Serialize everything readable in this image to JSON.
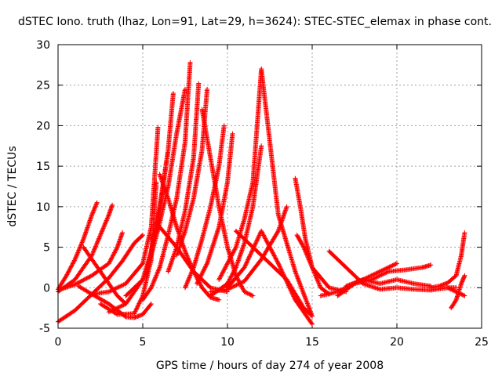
{
  "chart_data": {
    "type": "scatter",
    "title": "dSTEC Iono. truth (lhaz, Lon=91, Lat=29, h=3624): STEC-STEC_elemax in phase cont.",
    "xlabel": "GPS time / hours of day 274 of year 2008",
    "ylabel": "dSTEC  / TECUs",
    "xlim": [
      0,
      25
    ],
    "ylim": [
      -5,
      30
    ],
    "xticks": [
      0,
      5,
      10,
      15,
      20,
      25
    ],
    "yticks": [
      -5,
      0,
      5,
      10,
      15,
      20,
      25,
      30
    ],
    "grid": true,
    "marker": "plus",
    "color": "#ff0000",
    "series": [
      {
        "x": [
          0.0,
          0.5,
          1.0,
          1.5,
          2.0,
          2.3
        ],
        "y": [
          -0.2,
          1.5,
          3.5,
          6.0,
          9.0,
          10.5
        ]
      },
      {
        "x": [
          0.0,
          1.0,
          2.0,
          3.0,
          3.8,
          4.5,
          5.0
        ],
        "y": [
          -4.2,
          -2.8,
          -0.8,
          1.2,
          3.3,
          5.5,
          6.5
        ]
      },
      {
        "x": [
          0.0,
          1.0,
          2.0,
          2.5,
          3.0,
          3.2
        ],
        "y": [
          -0.5,
          1.0,
          4.0,
          6.5,
          9.0,
          10.2
        ]
      },
      {
        "x": [
          1.5,
          2.0,
          2.5,
          3.0,
          3.5,
          4.0
        ],
        "y": [
          5.0,
          3.5,
          2.0,
          0.5,
          -1.0,
          -2.0
        ]
      },
      {
        "x": [
          0.3,
          1.0,
          2.0,
          3.0,
          3.5,
          3.8
        ],
        "y": [
          -0.1,
          0.4,
          1.5,
          3.0,
          5.0,
          6.8
        ]
      },
      {
        "x": [
          1.2,
          2.0,
          3.0,
          3.5,
          4.0,
          4.5,
          5.0,
          5.5
        ],
        "y": [
          0.2,
          -0.8,
          -2.0,
          -2.8,
          -3.6,
          -3.7,
          -3.3,
          -2.0
        ]
      },
      {
        "x": [
          2.5,
          3.5,
          4.5,
          5.0,
          5.5,
          5.8
        ],
        "y": [
          -2.0,
          -3.3,
          -3.2,
          -1.0,
          3.5,
          13.0
        ]
      },
      {
        "x": [
          2.0,
          3.0,
          4.0,
          5.0,
          5.5,
          5.9
        ],
        "y": [
          -0.8,
          -0.5,
          0.5,
          3.0,
          7.5,
          19.8
        ]
      },
      {
        "x": [
          3.0,
          4.0,
          5.0,
          5.5,
          6.0,
          6.5
        ],
        "y": [
          -3.0,
          -2.0,
          1.0,
          4.5,
          9.5,
          17.0
        ]
      },
      {
        "x": [
          4.0,
          5.0,
          5.5,
          6.0,
          6.5,
          7.0,
          7.5
        ],
        "y": [
          -1.0,
          1.0,
          4.0,
          8.0,
          12.5,
          19.0,
          24.5
        ]
      },
      {
        "x": [
          5.0,
          5.5,
          6.0,
          6.5,
          7.0,
          7.5,
          7.8
        ],
        "y": [
          -1.5,
          0.0,
          2.5,
          6.5,
          11.0,
          18.0,
          27.8
        ]
      },
      {
        "x": [
          5.2,
          5.5,
          6.0,
          6.5,
          6.8
        ],
        "y": [
          1.5,
          4.5,
          10.0,
          17.0,
          24.0
        ]
      },
      {
        "x": [
          6.0,
          6.5,
          7.0,
          7.5,
          8.0,
          8.5,
          9.0,
          9.5
        ],
        "y": [
          14.0,
          11.0,
          7.5,
          4.5,
          2.0,
          0.0,
          -1.2,
          -1.5
        ]
      },
      {
        "x": [
          5.5,
          6.0,
          7.0,
          8.0,
          9.0,
          10.0
        ],
        "y": [
          6.0,
          7.5,
          5.0,
          2.0,
          0.0,
          -0.5
        ]
      },
      {
        "x": [
          6.5,
          7.0,
          7.5,
          8.0,
          8.3
        ],
        "y": [
          2.0,
          5.0,
          9.5,
          16.0,
          25.2
        ]
      },
      {
        "x": [
          7.0,
          7.5,
          8.0,
          8.5,
          8.8
        ],
        "y": [
          4.0,
          7.0,
          11.0,
          17.0,
          24.5
        ]
      },
      {
        "x": [
          7.5,
          8.0,
          8.5,
          9.0,
          9.5,
          9.8
        ],
        "y": [
          0.0,
          2.5,
          6.0,
          10.0,
          15.0,
          20.0
        ]
      },
      {
        "x": [
          8.2,
          8.8,
          9.5,
          10.0,
          10.3
        ],
        "y": [
          0.5,
          3.0,
          7.5,
          13.0,
          19.0
        ]
      },
      {
        "x": [
          8.5,
          9.0,
          9.5,
          10.0,
          10.5,
          11.0,
          11.5
        ],
        "y": [
          22.0,
          16.0,
          10.0,
          5.0,
          1.5,
          -0.5,
          -1.0
        ]
      },
      {
        "x": [
          9.0,
          10.0,
          10.5,
          11.0,
          11.5,
          12.0
        ],
        "y": [
          -1.0,
          0.5,
          2.5,
          5.5,
          10.0,
          17.5
        ]
      },
      {
        "x": [
          9.5,
          10.5,
          11.0,
          11.5,
          12.0
        ],
        "y": [
          1.0,
          5.0,
          8.5,
          13.0,
          27.0
        ]
      },
      {
        "x": [
          10.0,
          11.0,
          12.0,
          13.0,
          14.0,
          15.0
        ],
        "y": [
          0.0,
          2.5,
          7.0,
          3.0,
          -1.5,
          -4.5
        ]
      },
      {
        "x": [
          12.0,
          12.5,
          13.0,
          14.0,
          15.0
        ],
        "y": [
          27.0,
          18.0,
          9.0,
          2.0,
          -3.5
        ]
      },
      {
        "x": [
          9.0,
          10.0,
          11.0,
          12.0,
          13.0,
          13.5
        ],
        "y": [
          -0.5,
          -0.2,
          0.8,
          3.5,
          7.0,
          10.0
        ]
      },
      {
        "x": [
          10.5,
          11.5,
          12.5,
          13.5,
          14.5,
          15.0
        ],
        "y": [
          7.0,
          5.0,
          3.0,
          1.0,
          -2.5,
          -3.5
        ]
      },
      {
        "x": [
          14.0,
          14.3,
          14.6,
          15.0,
          15.5,
          16.0
        ],
        "y": [
          13.5,
          10.0,
          6.0,
          2.5,
          0.0,
          -0.8
        ]
      },
      {
        "x": [
          14.1,
          14.5,
          15.0,
          16.0,
          17.0
        ],
        "y": [
          6.5,
          5.0,
          2.5,
          0.0,
          -0.5
        ]
      },
      {
        "x": [
          16.0,
          17.0,
          18.0,
          19.0,
          20.0,
          21.0,
          22.0,
          23.0,
          23.5
        ],
        "y": [
          4.5,
          2.5,
          0.5,
          -0.2,
          0.0,
          -0.2,
          -0.3,
          0.0,
          0.0
        ]
      },
      {
        "x": [
          15.5,
          16.5,
          17.5,
          18.5,
          19.5,
          20.0
        ],
        "y": [
          -1.0,
          -0.5,
          0.5,
          1.5,
          2.5,
          3.0
        ]
      },
      {
        "x": [
          16.5,
          17.5,
          18.5,
          19.5,
          20.5,
          21.5,
          22.0
        ],
        "y": [
          -1.0,
          0.5,
          1.0,
          2.0,
          2.2,
          2.5,
          2.8
        ]
      },
      {
        "x": [
          17.0,
          18.0,
          19.0,
          20.0,
          21.0,
          22.0
        ],
        "y": [
          0.2,
          1.0,
          0.5,
          1.0,
          0.5,
          0.2
        ]
      },
      {
        "x": [
          22.0,
          22.5,
          23.0,
          23.5,
          23.8,
          24.0
        ],
        "y": [
          0.0,
          0.2,
          0.6,
          1.5,
          4.0,
          6.8
        ]
      },
      {
        "x": [
          23.2,
          23.5,
          23.8,
          24.0
        ],
        "y": [
          -2.5,
          -1.5,
          0.5,
          1.5
        ]
      },
      {
        "x": [
          23.0,
          23.5,
          24.0
        ],
        "y": [
          0.0,
          -0.5,
          -1.0
        ]
      }
    ]
  }
}
